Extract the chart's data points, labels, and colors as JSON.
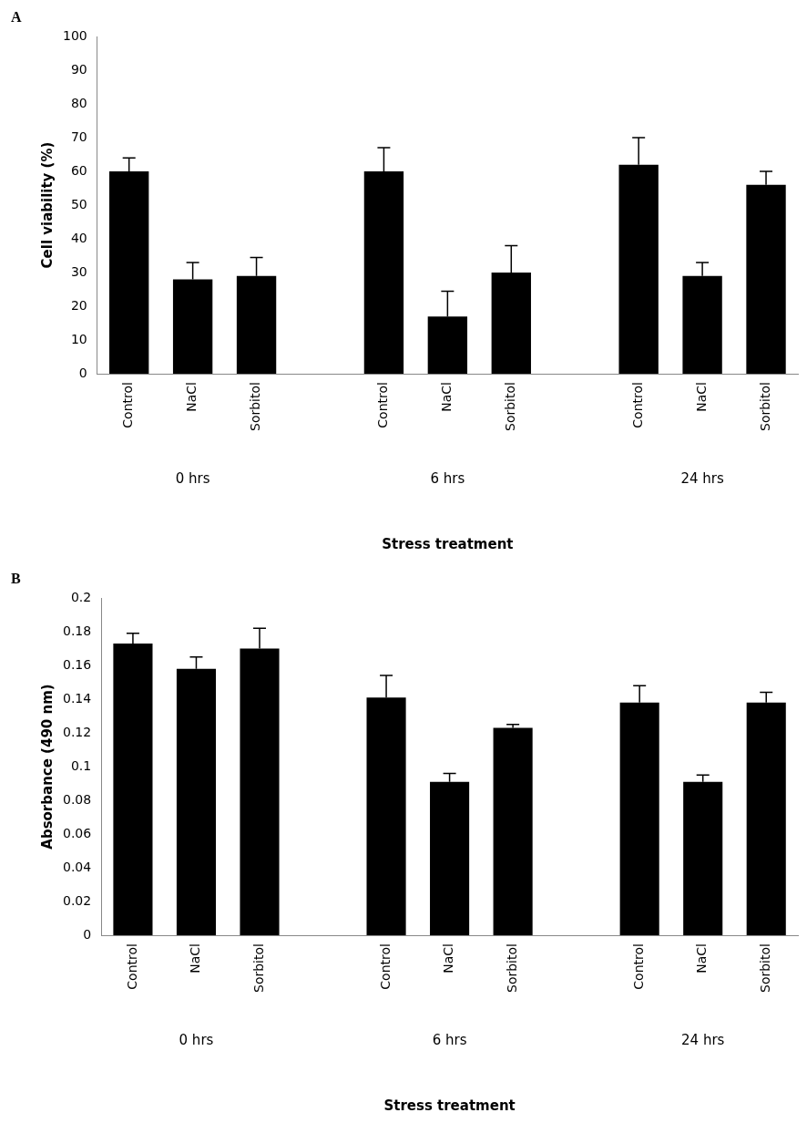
{
  "chart_data": [
    {
      "type": "bar",
      "title": "A",
      "xlabel": "Stress treatment",
      "ylabel": "Cell viability (%)",
      "categories": [
        "Control",
        "NaCl",
        "Sorbitol",
        null,
        "Control",
        "NaCl",
        "Sorbitol",
        null,
        "Control",
        "NaCl",
        "Sorbitol"
      ],
      "values": [
        60,
        28,
        29,
        null,
        60,
        17,
        30,
        null,
        62,
        29,
        56
      ],
      "errors": [
        [
          60,
          64
        ],
        [
          28,
          33
        ],
        [
          29,
          34.5
        ],
        null,
        [
          60,
          67
        ],
        [
          17,
          24.5
        ],
        [
          30,
          38
        ],
        null,
        [
          62,
          70
        ],
        [
          29,
          33
        ],
        [
          56,
          60
        ]
      ],
      "color": "#000000",
      "ylim": [
        0,
        100
      ],
      "yticks": [
        0,
        10,
        20,
        30,
        40,
        50,
        60,
        70,
        80,
        90,
        100
      ],
      "grid": false,
      "legend": false,
      "annotations": [
        "0 hrs",
        "6 hrs",
        "24 hrs"
      ]
    },
    {
      "type": "bar",
      "title": "B",
      "xlabel": "Stress treatment",
      "ylabel": "Absorbance (490 nm)",
      "categories": [
        "Control",
        "NaCl",
        "Sorbitol",
        null,
        "Control",
        "NaCl",
        "Sorbitol",
        null,
        "Control",
        "NaCl",
        "Sorbitol"
      ],
      "values": [
        0.173,
        0.158,
        0.17,
        null,
        0.141,
        0.091,
        0.123,
        null,
        0.138,
        0.091,
        0.138
      ],
      "errors": [
        [
          0.173,
          0.179
        ],
        [
          0.158,
          0.165
        ],
        [
          0.17,
          0.182
        ],
        null,
        [
          0.141,
          0.154
        ],
        [
          0.091,
          0.096
        ],
        [
          0.123,
          0.125
        ],
        null,
        [
          0.138,
          0.148
        ],
        [
          0.091,
          0.095
        ],
        [
          0.138,
          0.144
        ]
      ],
      "color": "#000000",
      "ylim": [
        0,
        0.2
      ],
      "yticks": [
        0,
        0.02,
        0.04,
        0.06,
        0.08,
        0.1,
        0.12,
        0.14,
        0.16,
        0.18,
        0.2
      ],
      "grid": false,
      "legend": false,
      "annotations": [
        "0 hrs",
        "6 hrs",
        "24 hrs"
      ]
    }
  ]
}
